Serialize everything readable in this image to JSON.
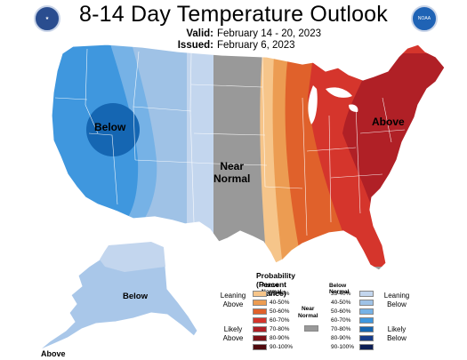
{
  "header": {
    "title": "8-14 Day Temperature Outlook",
    "valid_label": "Valid:",
    "valid_value": "February 14 - 20, 2023",
    "issued_label": "Issued:",
    "issued_value": "February 6, 2023",
    "left_logo": "doc-seal-icon",
    "right_logo": "noaa-logo-icon",
    "noaa_text": "NOAA"
  },
  "map": {
    "labels": {
      "below_west": "Below",
      "near_normal_line1": "Near",
      "near_normal_line2": "Normal",
      "above_east": "Above",
      "below_alaska": "Below",
      "above_alaska": "Above"
    }
  },
  "legend": {
    "title": "Probability (Percent Chance)",
    "above_header": "Above Normal",
    "below_header": "Below Normal",
    "near_normal_line1": "Near",
    "near_normal_line2": "Normal",
    "leaning_above": [
      "Leaning",
      "Above"
    ],
    "likely_above": [
      "Likely",
      "Above"
    ],
    "leaning_below": [
      "Leaning",
      "Below"
    ],
    "likely_below": [
      "Likely",
      "Below"
    ],
    "ranges": [
      "33-40%",
      "40-50%",
      "50-60%",
      "60-70%",
      "70-80%",
      "80-90%",
      "90-100%"
    ],
    "above_colors": [
      "#f6c58a",
      "#ec9c52",
      "#e0612b",
      "#d5352c",
      "#b02026",
      "#7d1117",
      "#4f0a0d"
    ],
    "below_colors": [
      "#c3d6ee",
      "#9fc2e6",
      "#76b2e6",
      "#3f97de",
      "#1566b2",
      "#153b8a",
      "#0d1f55"
    ],
    "near_color": "#999999"
  }
}
